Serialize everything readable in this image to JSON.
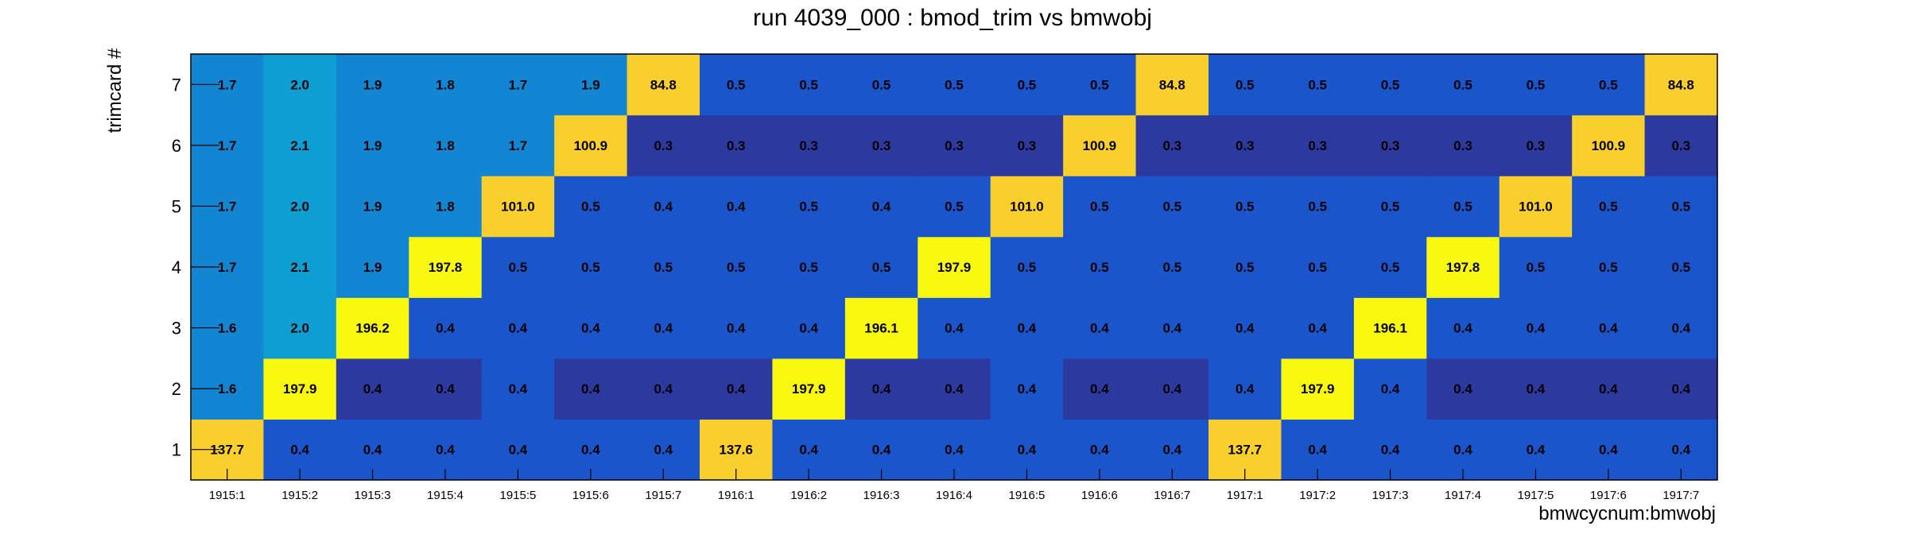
{
  "chart_data": {
    "type": "heatmap",
    "title": "run 4039_000 : bmod_trim vs bmwobj",
    "xlabel": "bmwcycnum:bmwobj",
    "ylabel": "trimcard #",
    "x_categories": [
      "1915:1",
      "1915:2",
      "1915:3",
      "1915:4",
      "1915:5",
      "1915:6",
      "1915:7",
      "1916:1",
      "1916:2",
      "1916:3",
      "1916:4",
      "1916:5",
      "1916:6",
      "1916:7",
      "1917:1",
      "1917:2",
      "1917:3",
      "1917:4",
      "1917:5",
      "1917:6",
      "1917:7"
    ],
    "y_categories": [
      "1",
      "2",
      "3",
      "4",
      "5",
      "6",
      "7"
    ],
    "values": [
      [
        137.7,
        0.4,
        0.4,
        0.4,
        0.4,
        0.4,
        0.4,
        137.6,
        0.4,
        0.4,
        0.4,
        0.4,
        0.4,
        0.4,
        137.7,
        0.4,
        0.4,
        0.4,
        0.4,
        0.4,
        0.4
      ],
      [
        1.6,
        197.9,
        0.4,
        0.4,
        0.4,
        0.4,
        0.4,
        0.4,
        197.9,
        0.4,
        0.4,
        0.4,
        0.4,
        0.4,
        0.4,
        197.9,
        0.4,
        0.4,
        0.4,
        0.4,
        0.4
      ],
      [
        1.6,
        2.0,
        196.2,
        0.4,
        0.4,
        0.4,
        0.4,
        0.4,
        0.4,
        196.1,
        0.4,
        0.4,
        0.4,
        0.4,
        0.4,
        0.4,
        196.1,
        0.4,
        0.4,
        0.4,
        0.4
      ],
      [
        1.7,
        2.1,
        1.9,
        197.8,
        0.5,
        0.5,
        0.5,
        0.5,
        0.5,
        0.5,
        197.9,
        0.5,
        0.5,
        0.5,
        0.5,
        0.5,
        0.5,
        197.8,
        0.5,
        0.5,
        0.5
      ],
      [
        1.7,
        2.0,
        1.9,
        1.8,
        101.0,
        0.5,
        0.4,
        0.4,
        0.5,
        0.4,
        0.5,
        101.0,
        0.5,
        0.5,
        0.5,
        0.5,
        0.5,
        0.5,
        101.0,
        0.5,
        0.5
      ],
      [
        1.7,
        2.1,
        1.9,
        1.8,
        1.7,
        100.9,
        0.3,
        0.3,
        0.3,
        0.3,
        0.3,
        0.3,
        100.9,
        0.3,
        0.3,
        0.3,
        0.3,
        0.3,
        0.3,
        100.9,
        0.3
      ],
      [
        1.7,
        2.0,
        1.9,
        1.8,
        1.7,
        1.9,
        84.8,
        0.5,
        0.5,
        0.5,
        0.5,
        0.5,
        0.5,
        84.8,
        0.5,
        0.5,
        0.5,
        0.5,
        0.5,
        0.5,
        84.8
      ]
    ],
    "colors": {
      "lowest": "#2c3a9f",
      "low": "#1a55cc",
      "mid_low": "#1286d3",
      "mid": "#0d9fd3",
      "mid_high": "#f9cf2e",
      "high": "#f9f90f",
      "grid_axis": "#000000",
      "background": "#ffffff"
    },
    "grid": false,
    "legend": "none"
  }
}
